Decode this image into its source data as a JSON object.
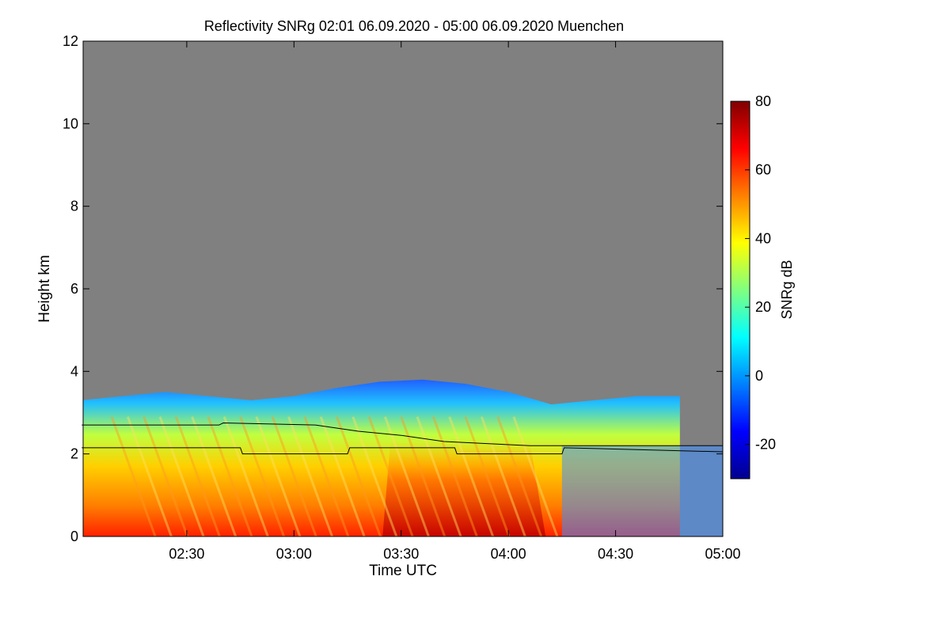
{
  "chart_data": {
    "type": "heatmap",
    "title": "Reflectivity SNRg   02:01 06.09.2020 - 05:00 06.09.2020 Muenchen",
    "xlabel": "Time UTC",
    "ylabel": "Height km",
    "colorbar_label": "SNRg dB",
    "x_range": [
      "02:01",
      "05:00"
    ],
    "x_ticks": [
      "02:30",
      "03:00",
      "03:30",
      "04:00",
      "04:30",
      "05:00"
    ],
    "y_range": [
      0,
      12
    ],
    "y_ticks": [
      "0",
      "2",
      "4",
      "6",
      "8",
      "10",
      "12"
    ],
    "colorbar_range": [
      -30,
      80
    ],
    "colorbar_ticks": [
      "-20",
      "0",
      "20",
      "40",
      "60",
      "80"
    ],
    "no_data_color": "#808080",
    "colormap": [
      "#00008f",
      "#0000ff",
      "#0080ff",
      "#00ffff",
      "#80ff80",
      "#ffff00",
      "#ff8000",
      "#ff0000",
      "#800000"
    ],
    "echo_top_km": [
      [
        2.01,
        3.3
      ],
      [
        2.2,
        3.4
      ],
      [
        2.4,
        3.5
      ],
      [
        2.6,
        3.4
      ],
      [
        2.8,
        3.3
      ],
      [
        3.0,
        3.4
      ],
      [
        3.2,
        3.6
      ],
      [
        3.4,
        3.75
      ],
      [
        3.6,
        3.8
      ],
      [
        3.8,
        3.7
      ],
      [
        4.0,
        3.5
      ],
      [
        4.2,
        3.2
      ],
      [
        4.4,
        3.3
      ],
      [
        4.6,
        3.4
      ],
      [
        4.8,
        3.4
      ]
    ],
    "series": [
      {
        "x": [
          2.01,
          2.65,
          2.67,
          3.1,
          3.3,
          3.5,
          3.7,
          3.9,
          4.1,
          4.3,
          5.0
        ],
        "y": [
          2.7,
          2.7,
          2.75,
          2.7,
          2.55,
          2.45,
          2.3,
          2.25,
          2.2,
          2.2,
          2.2
        ]
      },
      {
        "x": [
          2.01,
          2.75,
          2.76,
          3.25,
          3.26,
          3.75,
          3.76,
          4.25,
          4.26,
          5.0
        ],
        "y": [
          2.15,
          2.15,
          2.0,
          2.0,
          2.15,
          2.15,
          2.0,
          2.0,
          2.15,
          2.05
        ]
      }
    ]
  }
}
